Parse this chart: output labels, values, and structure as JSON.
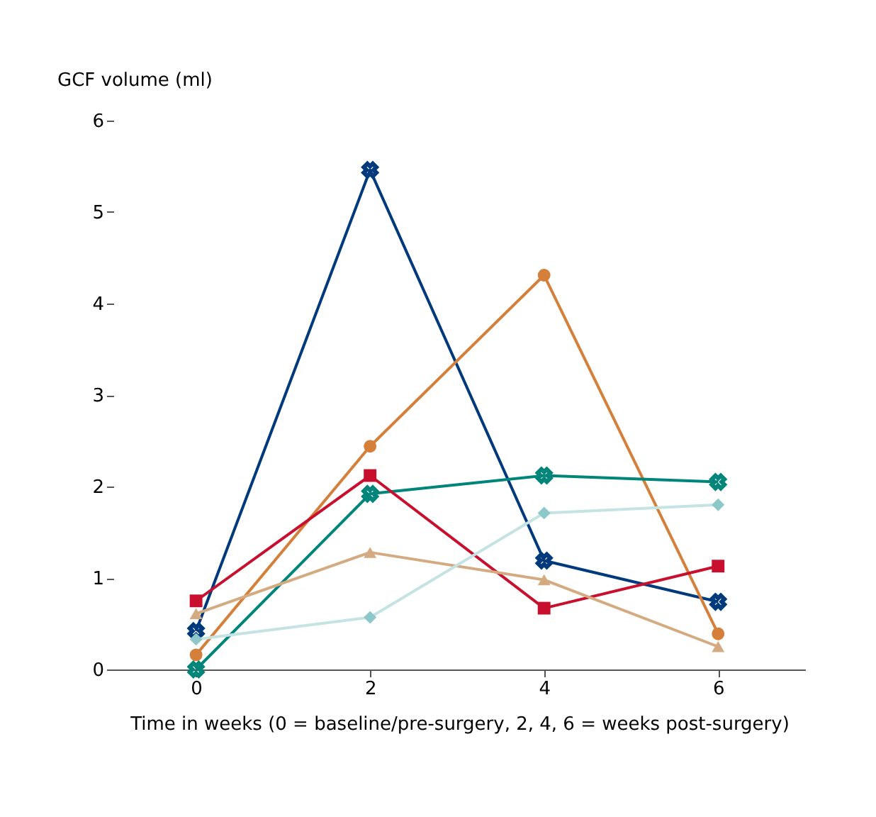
{
  "chart_data": {
    "type": "line",
    "xlabel": "Time in weeks (0 = baseline/pre-surgery, 2, 4, 6 = weeks post-surgery)",
    "ylabel": "GCF volume (ml)",
    "x": [
      0,
      2,
      4,
      6
    ],
    "series": [
      {
        "color": "#003a7d",
        "marker": "cross",
        "values": [
          0.42,
          5.46,
          1.19,
          0.74
        ]
      },
      {
        "color": "#d4803a",
        "marker": "circle",
        "values": [
          0.16,
          2.44,
          4.31,
          0.39
        ]
      },
      {
        "color": "#00857a",
        "marker": "cross",
        "values": [
          0.0,
          1.92,
          2.12,
          2.05
        ]
      },
      {
        "color": "#c8102e",
        "marker": "square",
        "values": [
          0.75,
          2.12,
          0.67,
          1.13
        ]
      },
      {
        "color": "#d4aa80",
        "marker": "triangle",
        "values": [
          0.61,
          1.28,
          0.98,
          0.25
        ]
      },
      {
        "color": "#c5e3e3",
        "marker": "diamond",
        "values": [
          0.33,
          0.57,
          1.71,
          1.8
        ]
      }
    ],
    "xlim": [
      -0.95,
      7
    ],
    "xticks": [
      0,
      2,
      4,
      6
    ],
    "ylim": [
      0,
      6
    ],
    "yticks": [
      0,
      1,
      2,
      3,
      4,
      5,
      6
    ],
    "grid": false,
    "line_style": "solid"
  }
}
